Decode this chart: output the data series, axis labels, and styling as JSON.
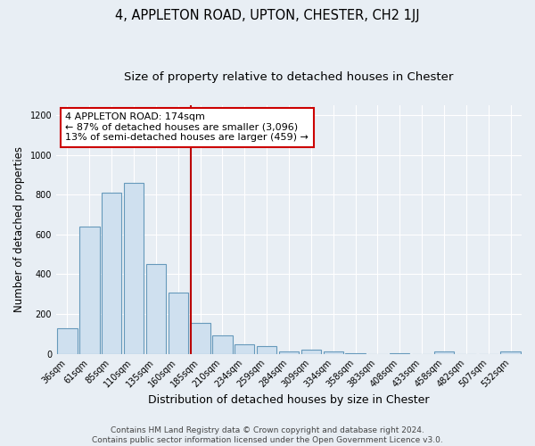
{
  "title": "4, APPLETON ROAD, UPTON, CHESTER, CH2 1JJ",
  "subtitle": "Size of property relative to detached houses in Chester",
  "xlabel": "Distribution of detached houses by size in Chester",
  "ylabel": "Number of detached properties",
  "categories": [
    "36sqm",
    "61sqm",
    "85sqm",
    "110sqm",
    "135sqm",
    "160sqm",
    "185sqm",
    "210sqm",
    "234sqm",
    "259sqm",
    "284sqm",
    "309sqm",
    "334sqm",
    "358sqm",
    "383sqm",
    "408sqm",
    "433sqm",
    "458sqm",
    "482sqm",
    "507sqm",
    "532sqm"
  ],
  "values": [
    130,
    640,
    810,
    860,
    450,
    310,
    155,
    93,
    50,
    40,
    12,
    20,
    10,
    5,
    0,
    5,
    0,
    10,
    0,
    0,
    10
  ],
  "bar_color": "#cfe0ef",
  "bar_edge_color": "#6699bb",
  "bar_edge_width": 0.8,
  "property_line_color": "#bb0000",
  "annotation_text": "4 APPLETON ROAD: 174sqm\n← 87% of detached houses are smaller (3,096)\n13% of semi-detached houses are larger (459) →",
  "annotation_box_color": "white",
  "annotation_box_edge_color": "#cc0000",
  "ylim": [
    0,
    1250
  ],
  "yticks": [
    0,
    200,
    400,
    600,
    800,
    1000,
    1200
  ],
  "background_color": "#e8eef4",
  "plot_bg_color": "#e8eef4",
  "grid_color": "white",
  "footer_line1": "Contains HM Land Registry data © Crown copyright and database right 2024.",
  "footer_line2": "Contains public sector information licensed under the Open Government Licence v3.0.",
  "title_fontsize": 10.5,
  "subtitle_fontsize": 9.5,
  "xlabel_fontsize": 9,
  "ylabel_fontsize": 8.5,
  "tick_fontsize": 7,
  "annotation_fontsize": 8,
  "footer_fontsize": 6.5
}
